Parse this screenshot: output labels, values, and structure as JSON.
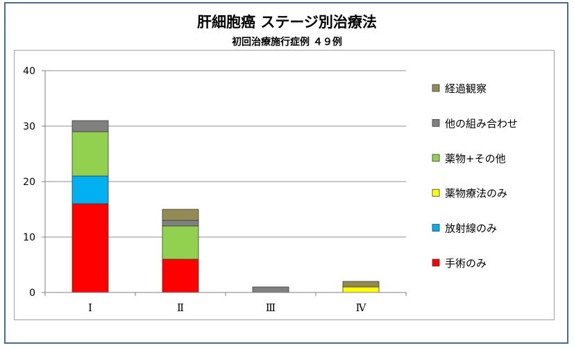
{
  "chart_data": {
    "type": "bar",
    "stacked": true,
    "title": "肝細胞癌 ステージ別治療法",
    "subtitle": "初回治療施行症例 ４９例",
    "categories": [
      "Ⅰ",
      "Ⅱ",
      "Ⅲ",
      "Ⅳ"
    ],
    "ylim": [
      0,
      40
    ],
    "yticks": [
      0,
      10,
      20,
      30,
      40
    ],
    "grid": true,
    "legend_position": "right",
    "series": [
      {
        "name": "手術のみ",
        "color": "#ff0000",
        "values": [
          16,
          6,
          0,
          0
        ]
      },
      {
        "name": "放射線のみ",
        "color": "#00b0f0",
        "values": [
          5,
          0,
          0,
          0
        ]
      },
      {
        "name": "薬物療法のみ",
        "color": "#ffff00",
        "values": [
          0,
          0,
          0,
          1
        ]
      },
      {
        "name": "薬物+その他",
        "color": "#92d050",
        "values": [
          8,
          6,
          0,
          0
        ]
      },
      {
        "name": "他の組み合わせ",
        "color": "#808080",
        "values": [
          2,
          1,
          1,
          0
        ]
      },
      {
        "name": "経過観察",
        "color": "#948a54",
        "values": [
          0,
          2,
          0,
          1
        ]
      }
    ],
    "legend_order": [
      "経過観察",
      "他の組み合わせ",
      "薬物+その他",
      "薬物療法のみ",
      "放射線のみ",
      "手術のみ"
    ]
  }
}
